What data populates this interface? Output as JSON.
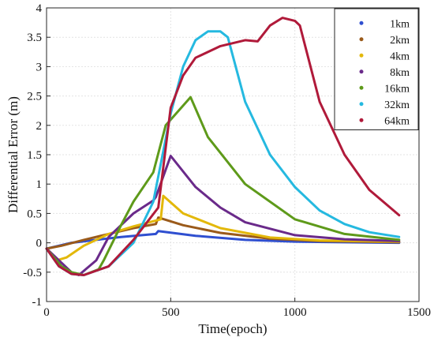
{
  "chart_data": {
    "type": "line",
    "title": "",
    "xlabel": "Time(epoch)",
    "ylabel": "Differential Error (m)",
    "xlim": [
      0,
      1500
    ],
    "ylim": [
      -1,
      4
    ],
    "xticks": [
      0,
      500,
      1000,
      1500
    ],
    "yticks": [
      -1,
      -0.5,
      0,
      0.5,
      1,
      1.5,
      2,
      2.5,
      3,
      3.5,
      4
    ],
    "grid": true,
    "legend_position": "top-right",
    "series": [
      {
        "name": "1km",
        "color": "#2f4fd0",
        "points": [
          [
            0,
            -0.1
          ],
          [
            50,
            -0.05
          ],
          [
            100,
            0.0
          ],
          [
            200,
            0.05
          ],
          [
            300,
            0.1
          ],
          [
            440,
            0.15
          ],
          [
            450,
            0.2
          ],
          [
            600,
            0.12
          ],
          [
            800,
            0.05
          ],
          [
            1000,
            0.02
          ],
          [
            1200,
            0.01
          ],
          [
            1420,
            0.0
          ]
        ]
      },
      {
        "name": "2km",
        "color": "#9a5a1a",
        "points": [
          [
            0,
            -0.1
          ],
          [
            60,
            -0.05
          ],
          [
            150,
            0.05
          ],
          [
            250,
            0.15
          ],
          [
            350,
            0.25
          ],
          [
            440,
            0.32
          ],
          [
            450,
            0.43
          ],
          [
            550,
            0.3
          ],
          [
            700,
            0.17
          ],
          [
            900,
            0.07
          ],
          [
            1100,
            0.03
          ],
          [
            1420,
            0.01
          ]
        ]
      },
      {
        "name": "4km",
        "color": "#e3b80a",
        "points": [
          [
            0,
            -0.1
          ],
          [
            40,
            -0.3
          ],
          [
            80,
            -0.25
          ],
          [
            150,
            -0.05
          ],
          [
            250,
            0.15
          ],
          [
            350,
            0.28
          ],
          [
            460,
            0.4
          ],
          [
            470,
            0.8
          ],
          [
            550,
            0.5
          ],
          [
            700,
            0.25
          ],
          [
            900,
            0.09
          ],
          [
            1100,
            0.04
          ],
          [
            1420,
            0.02
          ]
        ]
      },
      {
        "name": "8km",
        "color": "#6a2a8a",
        "points": [
          [
            0,
            -0.1
          ],
          [
            50,
            -0.3
          ],
          [
            100,
            -0.5
          ],
          [
            130,
            -0.55
          ],
          [
            200,
            -0.3
          ],
          [
            250,
            0.1
          ],
          [
            350,
            0.5
          ],
          [
            430,
            0.72
          ],
          [
            440,
            0.78
          ],
          [
            500,
            1.48
          ],
          [
            600,
            0.95
          ],
          [
            700,
            0.6
          ],
          [
            800,
            0.35
          ],
          [
            1000,
            0.13
          ],
          [
            1200,
            0.06
          ],
          [
            1420,
            0.03
          ]
        ]
      },
      {
        "name": "16km",
        "color": "#5e9a1a",
        "points": [
          [
            0,
            -0.1
          ],
          [
            60,
            -0.4
          ],
          [
            100,
            -0.5
          ],
          [
            150,
            -0.55
          ],
          [
            210,
            -0.45
          ],
          [
            230,
            -0.3
          ],
          [
            300,
            0.3
          ],
          [
            350,
            0.7
          ],
          [
            430,
            1.2
          ],
          [
            480,
            2.0
          ],
          [
            580,
            2.48
          ],
          [
            650,
            1.8
          ],
          [
            800,
            1.0
          ],
          [
            1000,
            0.4
          ],
          [
            1200,
            0.15
          ],
          [
            1420,
            0.05
          ]
        ]
      },
      {
        "name": "32km",
        "color": "#25b9e0",
        "points": [
          [
            0,
            -0.1
          ],
          [
            50,
            -0.4
          ],
          [
            100,
            -0.53
          ],
          [
            150,
            -0.55
          ],
          [
            250,
            -0.4
          ],
          [
            350,
            0.0
          ],
          [
            430,
            0.7
          ],
          [
            500,
            2.2
          ],
          [
            550,
            3.0
          ],
          [
            600,
            3.45
          ],
          [
            650,
            3.6
          ],
          [
            700,
            3.6
          ],
          [
            730,
            3.5
          ],
          [
            800,
            2.4
          ],
          [
            900,
            1.5
          ],
          [
            1000,
            0.95
          ],
          [
            1100,
            0.55
          ],
          [
            1200,
            0.32
          ],
          [
            1300,
            0.18
          ],
          [
            1420,
            0.1
          ]
        ]
      },
      {
        "name": "64km",
        "color": "#b01a3a",
        "points": [
          [
            0,
            -0.1
          ],
          [
            50,
            -0.4
          ],
          [
            100,
            -0.53
          ],
          [
            150,
            -0.55
          ],
          [
            250,
            -0.4
          ],
          [
            350,
            0.05
          ],
          [
            450,
            0.6
          ],
          [
            500,
            2.3
          ],
          [
            550,
            2.85
          ],
          [
            600,
            3.15
          ],
          [
            700,
            3.35
          ],
          [
            800,
            3.45
          ],
          [
            850,
            3.43
          ],
          [
            900,
            3.7
          ],
          [
            950,
            3.83
          ],
          [
            1000,
            3.78
          ],
          [
            1020,
            3.7
          ],
          [
            1100,
            2.4
          ],
          [
            1200,
            1.5
          ],
          [
            1300,
            0.9
          ],
          [
            1420,
            0.47
          ]
        ]
      }
    ]
  }
}
